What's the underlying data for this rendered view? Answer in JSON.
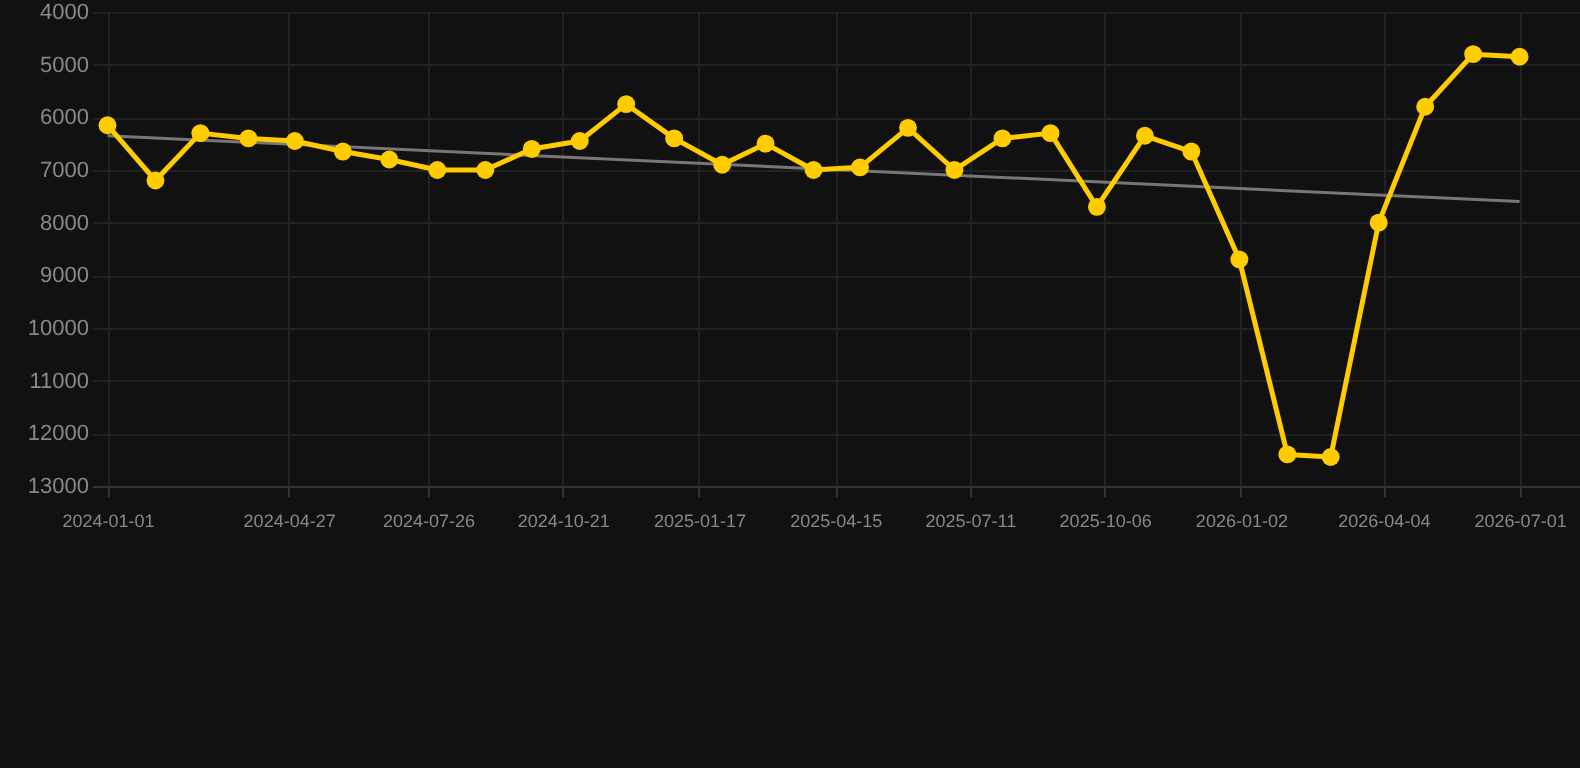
{
  "chart_data": {
    "type": "line",
    "marker": "circle",
    "line_style": "solid",
    "grid": true,
    "xlim": [
      "2023-12-22",
      "2026-08-09"
    ],
    "xticks": [
      "2024-01-01",
      "2024-04-27",
      "2024-07-26",
      "2024-10-21",
      "2025-01-17",
      "2025-04-15",
      "2025-07-11",
      "2025-10-06",
      "2026-01-02",
      "2026-04-04",
      "2026-07-01"
    ],
    "ylim": [
      13000,
      4000
    ],
    "yticks": [
      4000,
      5000,
      6000,
      7000,
      8000,
      9000,
      10000,
      11000,
      12000,
      13000
    ],
    "series": [
      {
        "color": "#ffcc00",
        "x": [
          "2024-01-01",
          "2024-02-01",
          "2024-03-01",
          "2024-04-01",
          "2024-05-01",
          "2024-06-01",
          "2024-07-01",
          "2024-08-01",
          "2024-09-01",
          "2024-10-01",
          "2024-11-01",
          "2024-12-01",
          "2025-01-01",
          "2025-02-01",
          "2025-03-01",
          "2025-04-01",
          "2025-05-01",
          "2025-06-01",
          "2025-07-01",
          "2025-08-01",
          "2025-09-01",
          "2025-10-01",
          "2025-11-01",
          "2025-12-01",
          "2026-01-01",
          "2026-02-01",
          "2026-03-01",
          "2026-04-01",
          "2026-05-01",
          "2026-06-01",
          "2026-07-01"
        ],
        "values": [
          6150,
          7200,
          6300,
          6400,
          6450,
          6650,
          6800,
          7000,
          7000,
          6600,
          6450,
          5750,
          6400,
          6900,
          6500,
          7000,
          6950,
          6200,
          7000,
          6400,
          6300,
          7700,
          6350,
          6650,
          8700,
          12400,
          12450,
          8000,
          5800,
          4800,
          4850
        ]
      },
      {
        "color": "#777777",
        "marker": "none",
        "x": [
          "2024-01-01",
          "2026-07-01"
        ],
        "values": [
          6350,
          7600
        ]
      }
    ]
  }
}
